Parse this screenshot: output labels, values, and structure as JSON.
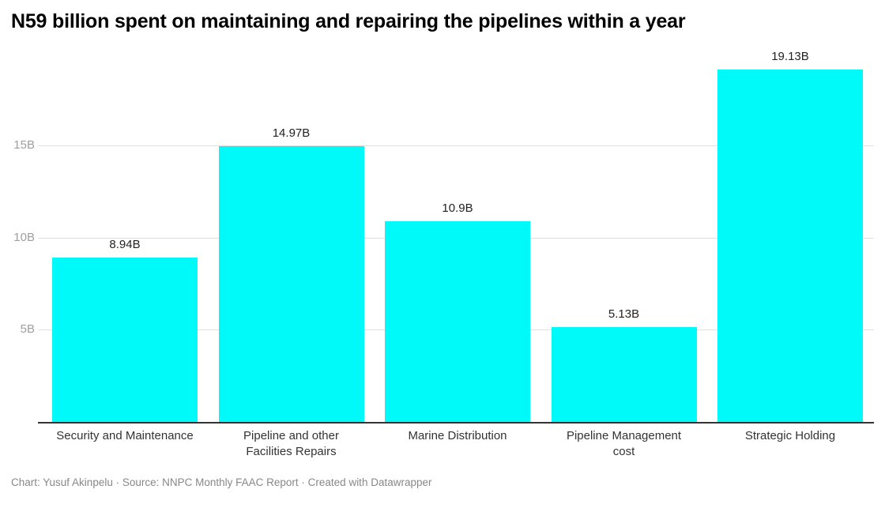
{
  "title": "N59 billion spent on maintaining and repairing the pipelines within a year",
  "footer": "Chart: Yusuf Akinpelu · Source: NNPC Monthly FAAC Report · Created with Datawrapper",
  "colors": {
    "bar": "#00FAFA",
    "gridline": "#e0e0e0",
    "axis_line": "#333333",
    "tick_label": "#9e9e9e",
    "value_label": "#222222",
    "category_label": "#333333",
    "footer_text": "#888888",
    "background": "#ffffff"
  },
  "chart_data": {
    "type": "bar",
    "title": "N59 billion spent on maintaining and repairing the pipelines within a year",
    "categories": [
      "Security and Maintenance",
      "Pipeline and other Facilities Repairs",
      "Marine Distribution",
      "Pipeline Management cost",
      "Strategic Holding"
    ],
    "category_lines": [
      [
        "Security and Maintenance"
      ],
      [
        "Pipeline and other",
        "Facilities Repairs"
      ],
      [
        "Marine Distribution"
      ],
      [
        "Pipeline Management",
        "cost"
      ],
      [
        "Strategic Holding"
      ]
    ],
    "values": [
      8.94,
      14.97,
      10.9,
      5.13,
      19.13
    ],
    "value_labels": [
      "8.94B",
      "14.97B",
      "10.9B",
      "5.13B",
      "19.13B"
    ],
    "xlabel": "",
    "ylabel": "",
    "ylim": [
      0,
      19.5
    ],
    "yticks": [
      {
        "value": 5,
        "label": "5B"
      },
      {
        "value": 10,
        "label": "10B"
      },
      {
        "value": 15,
        "label": "15B"
      }
    ],
    "grid": true,
    "legend": false,
    "bar_color": "#00FAFA"
  }
}
